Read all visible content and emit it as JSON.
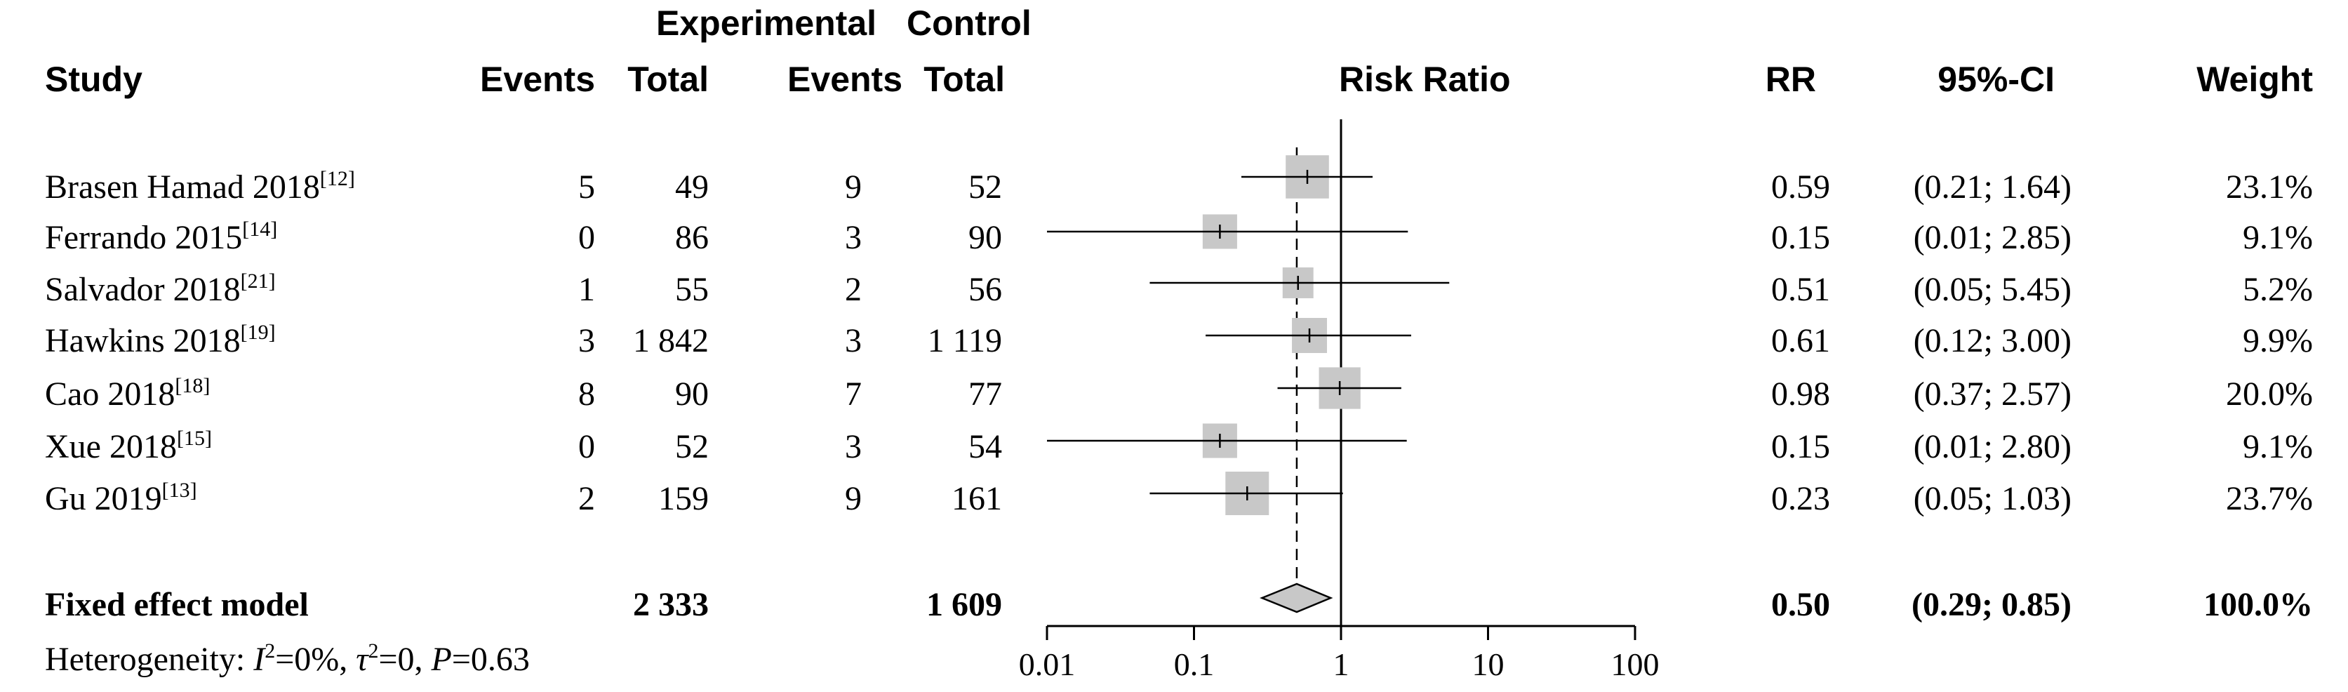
{
  "headers": {
    "group_experimental": "Experimental",
    "group_control": "Control",
    "study": "Study",
    "events_exp": "Events",
    "total_exp": "Total",
    "events_ctrl": "Events",
    "total_ctrl": "Total",
    "risk_ratio": "Risk Ratio",
    "rr": "RR",
    "ci": "95%-CI",
    "weight": "Weight"
  },
  "studies": [
    {
      "name": "Brasen Hamad 2018",
      "ref": "[12]",
      "events_exp": "5",
      "total_exp": "49",
      "events_ctrl": "9",
      "total_ctrl": "52",
      "rr": "0.59",
      "ci": "(0.21; 1.64)",
      "weight": "23.1%"
    },
    {
      "name": "Ferrando 2015",
      "ref": "[14]",
      "events_exp": "0",
      "total_exp": "86",
      "events_ctrl": "3",
      "total_ctrl": "90",
      "rr": "0.15",
      "ci": "(0.01; 2.85)",
      "weight": "9.1%"
    },
    {
      "name": "Salvador 2018",
      "ref": "[21]",
      "events_exp": "1",
      "total_exp": "55",
      "events_ctrl": "2",
      "total_ctrl": "56",
      "rr": "0.51",
      "ci": "(0.05; 5.45)",
      "weight": "5.2%"
    },
    {
      "name": "Hawkins 2018",
      "ref": "[19]",
      "events_exp": "3",
      "total_exp": "1 842",
      "events_ctrl": "3",
      "total_ctrl": "1 119",
      "rr": "0.61",
      "ci": "(0.12; 3.00)",
      "weight": "9.9%"
    },
    {
      "name": "Cao 2018",
      "ref": "[18]",
      "events_exp": "8",
      "total_exp": "90",
      "events_ctrl": "7",
      "total_ctrl": "77",
      "rr": "0.98",
      "ci": "(0.37; 2.57)",
      "weight": "20.0%"
    },
    {
      "name": "Xue 2018",
      "ref": "[15]",
      "events_exp": "0",
      "total_exp": "52",
      "events_ctrl": "3",
      "total_ctrl": "54",
      "rr": "0.15",
      "ci": "(0.01; 2.80)",
      "weight": "9.1%"
    },
    {
      "name": "Gu 2019",
      "ref": "[13]",
      "events_exp": "2",
      "total_exp": "159",
      "events_ctrl": "9",
      "total_ctrl": "161",
      "rr": "0.23",
      "ci": "(0.05; 1.03)",
      "weight": "23.7%"
    }
  ],
  "pooled": {
    "label": "Fixed effect model",
    "total_exp": "2 333",
    "total_ctrl": "1 609",
    "rr": "0.50",
    "ci": "(0.29; 0.85)",
    "weight": "100.0%"
  },
  "heterogeneity": {
    "prefix": "Heterogeneity: ",
    "i2_symbol": "I",
    "i2_value": "=0%, ",
    "tau2_symbol": "τ",
    "tau2_value": "=0, ",
    "p_symbol": "P",
    "p_value": "=0.63"
  },
  "chart_data": {
    "type": "forest",
    "scale": "log",
    "xlim": [
      0.01,
      100
    ],
    "ticks": [
      0.01,
      0.1,
      1,
      10,
      100
    ],
    "tick_labels": [
      "0.01",
      "0.1",
      "1",
      "10",
      "100"
    ],
    "reference_line": 1,
    "pooled_line": 0.5,
    "points": [
      {
        "rr": 0.59,
        "lo": 0.21,
        "hi": 1.64,
        "weight": 23.1
      },
      {
        "rr": 0.15,
        "lo": 0.01,
        "hi": 2.85,
        "weight": 9.1
      },
      {
        "rr": 0.51,
        "lo": 0.05,
        "hi": 5.45,
        "weight": 5.2
      },
      {
        "rr": 0.61,
        "lo": 0.12,
        "hi": 3.0,
        "weight": 9.9
      },
      {
        "rr": 0.98,
        "lo": 0.37,
        "hi": 2.57,
        "weight": 20.0
      },
      {
        "rr": 0.15,
        "lo": 0.01,
        "hi": 2.8,
        "weight": 9.1
      },
      {
        "rr": 0.23,
        "lo": 0.05,
        "hi": 1.03,
        "weight": 23.7
      }
    ],
    "pooled": {
      "rr": 0.5,
      "lo": 0.29,
      "hi": 0.85
    },
    "colors": {
      "box": "#c8c8c8",
      "diamond": "#c8c8c8",
      "line": "#000000"
    }
  }
}
